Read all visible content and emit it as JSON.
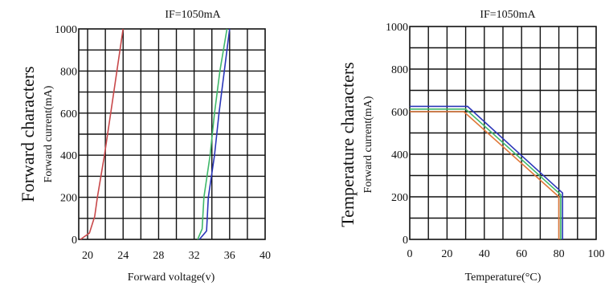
{
  "chart_data": [
    {
      "type": "line",
      "subtitle": "IF=1050mA",
      "title": "Forward characters",
      "ylabel": "Forward current(mA)",
      "xlabel": "Forward voltage(v)",
      "xlim": [
        19,
        40
      ],
      "ylim": [
        0,
        1000
      ],
      "xticks": [
        20,
        24,
        28,
        32,
        36,
        40
      ],
      "yticks": [
        0,
        200,
        400,
        600,
        800,
        1000
      ],
      "x_grid": [
        20,
        22,
        24,
        26,
        28,
        30,
        32,
        34,
        36,
        38,
        40
      ],
      "grid": true,
      "series": [
        {
          "color": "#c8484a",
          "points": [
            [
              19.2,
              0
            ],
            [
              20.2,
              30
            ],
            [
              20.8,
              110
            ],
            [
              21.1,
              200
            ],
            [
              21.9,
              400
            ],
            [
              22.6,
              600
            ],
            [
              23.3,
              800
            ],
            [
              24.0,
              1000
            ]
          ]
        },
        {
          "color": "#3fb86a",
          "points": [
            [
              32.4,
              0
            ],
            [
              32.9,
              50
            ],
            [
              33.1,
              200
            ],
            [
              33.8,
              400
            ],
            [
              34.3,
              600
            ],
            [
              34.9,
              800
            ],
            [
              35.7,
              1000
            ]
          ]
        },
        {
          "color": "#2a36b8",
          "points": [
            [
              32.6,
              0
            ],
            [
              33.4,
              40
            ],
            [
              33.6,
              200
            ],
            [
              34.3,
              400
            ],
            [
              34.8,
              600
            ],
            [
              35.4,
              800
            ],
            [
              36.0,
              1000
            ]
          ]
        }
      ]
    },
    {
      "type": "line",
      "subtitle": "IF=1050mA",
      "title": "Temperature characters",
      "ylabel": "Forward current(mA)",
      "xlabel": "Temperature(°C)",
      "xlim": [
        0,
        100
      ],
      "ylim": [
        0,
        1000
      ],
      "xticks": [
        0,
        20,
        40,
        60,
        80,
        100
      ],
      "yticks": [
        0,
        200,
        400,
        600,
        800,
        1000
      ],
      "x_grid": [
        0,
        10,
        20,
        30,
        40,
        50,
        60,
        70,
        80,
        90,
        100
      ],
      "grid": true,
      "series": [
        {
          "color": "#e0783a",
          "points": [
            [
              0,
              600
            ],
            [
              29,
              600
            ],
            [
              80,
              200
            ],
            [
              80,
              0
            ]
          ]
        },
        {
          "color": "#3fb86a",
          "points": [
            [
              0,
              612
            ],
            [
              30,
              612
            ],
            [
              81,
              210
            ],
            [
              81,
              0
            ]
          ]
        },
        {
          "color": "#2a36b8",
          "points": [
            [
              0,
              625
            ],
            [
              31,
              625
            ],
            [
              82,
              218
            ],
            [
              82,
              0
            ]
          ]
        }
      ]
    }
  ]
}
